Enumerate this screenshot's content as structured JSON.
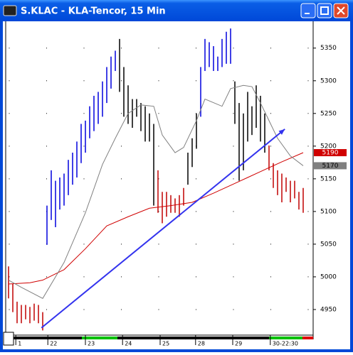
{
  "chart_data": {
    "type": "stock",
    "title": "S.KLAC - KLA-Tencor, 15 Min",
    "ylim": [
      4913,
      5391
    ],
    "yticks": [
      4950,
      5000,
      5050,
      5100,
      5150,
      5200,
      5250,
      5300,
      5350
    ],
    "xlim": [
      -1,
      71
    ],
    "xticks": [
      {
        "value": 1.7,
        "label": "1"
      },
      {
        "value": 9.2,
        "label": "22"
      },
      {
        "value": 18,
        "label": "23"
      },
      {
        "value": 26.7,
        "label": "24"
      },
      {
        "value": 35.5,
        "label": "25"
      },
      {
        "value": 43.8,
        "label": "28"
      },
      {
        "value": 52.5,
        "label": "29"
      },
      {
        "value": 61.3,
        "label": "30-22:30"
      }
    ],
    "grid": true,
    "series": [
      {
        "color": "#c00000",
        "x": [
          0,
          1,
          2,
          3,
          4,
          5,
          6,
          7,
          8
        ],
        "high": [
          5016,
          4989,
          4962,
          4957,
          4957,
          4954,
          4959,
          4957,
          4946
        ],
        "low": [
          4967,
          4946,
          4929,
          4929,
          4935,
          4929,
          4933,
          4929,
          4918
        ]
      },
      {
        "color": "#0000dd",
        "x": [
          9,
          10,
          11,
          12,
          13,
          14,
          15,
          16,
          17,
          18,
          19,
          20,
          21,
          22,
          23,
          24,
          25
        ],
        "high": [
          5109,
          5163,
          5147,
          5152,
          5158,
          5179,
          5190,
          5207,
          5234,
          5239,
          5261,
          5277,
          5283,
          5299,
          5321,
          5337,
          5346
        ],
        "low": [
          5049,
          5087,
          5076,
          5103,
          5109,
          5125,
          5141,
          5152,
          5174,
          5190,
          5212,
          5223,
          5234,
          5245,
          5266,
          5288,
          5315
        ]
      },
      {
        "color": "#000000",
        "x": [
          26,
          27,
          28,
          29,
          30,
          31,
          32,
          33,
          34
        ],
        "high": [
          5364,
          5321,
          5293,
          5272,
          5272,
          5266,
          5261,
          5250,
          5234
        ],
        "low": [
          5283,
          5245,
          5234,
          5228,
          5245,
          5223,
          5207,
          5207,
          5109
        ]
      },
      {
        "color": "#c00000",
        "x": [
          35,
          36,
          37,
          38,
          39,
          40,
          41
        ],
        "high": [
          5163,
          5130,
          5130,
          5125,
          5120,
          5125,
          5136
        ],
        "low": [
          5098,
          5082,
          5092,
          5098,
          5098,
          5092,
          5109
        ]
      },
      {
        "color": "#000000",
        "x": [
          42,
          43,
          44
        ],
        "high": [
          5190,
          5212,
          5250
        ],
        "low": [
          5141,
          5168,
          5196
        ]
      },
      {
        "color": "#0000dd",
        "x": [
          45,
          46,
          47,
          48,
          49,
          50,
          51,
          52
        ],
        "high": [
          5321,
          5364,
          5359,
          5353,
          5337,
          5364,
          5375,
          5380
        ],
        "low": [
          5245,
          5315,
          5321,
          5315,
          5315,
          5321,
          5326,
          5326
        ]
      },
      {
        "color": "#000000",
        "x": [
          53,
          54,
          55,
          56,
          57,
          58,
          59,
          60
        ],
        "high": [
          5299,
          5266,
          5250,
          5283,
          5261,
          5293,
          5277,
          5250
        ],
        "low": [
          5234,
          5147,
          5163,
          5207,
          5217,
          5228,
          5207,
          5190
        ]
      },
      {
        "color": "#c00000",
        "x": [
          61,
          62,
          63,
          64,
          65,
          66,
          67,
          68,
          69
        ],
        "high": [
          5201,
          5174,
          5163,
          5158,
          5152,
          5147,
          5147,
          5130,
          5136
        ],
        "low": [
          5163,
          5136,
          5125,
          5114,
          5130,
          5114,
          5120,
          5103,
          5098
        ]
      }
    ],
    "lines": [
      {
        "color": "#d00000",
        "x": [
          0,
          5,
          8,
          13,
          18,
          23,
          28,
          33,
          38,
          43,
          48,
          53,
          56,
          59,
          64,
          69
        ],
        "values": [
          4989,
          4991,
          4995,
          5011,
          5043,
          5078,
          5092,
          5105,
          5109,
          5114,
          5128,
          5143,
          5152,
          5161,
          5176,
          5190
        ]
      },
      {
        "color": "#808080",
        "x": [
          0,
          3,
          8,
          13,
          18,
          22,
          25,
          28,
          31,
          34,
          36,
          39,
          41,
          44,
          46,
          50,
          52,
          55,
          57,
          59,
          63,
          66,
          69
        ],
        "values": [
          4995,
          4984,
          4967,
          5022,
          5098,
          5172,
          5212,
          5250,
          5263,
          5261,
          5217,
          5190,
          5198,
          5239,
          5272,
          5261,
          5288,
          5293,
          5291,
          5266,
          5212,
          5185,
          5170
        ]
      }
    ],
    "trendline": {
      "color": "#3333ee",
      "x": [
        7.7,
        64.7
      ],
      "values": [
        4922,
        5226
      ]
    }
  }
}
